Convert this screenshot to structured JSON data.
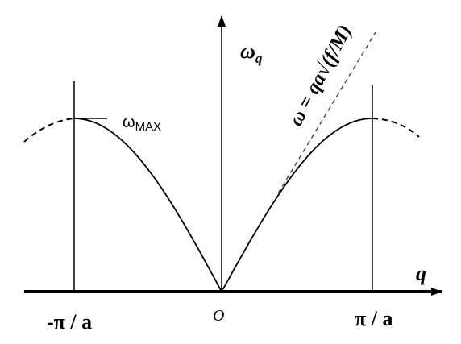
{
  "labels": {
    "omega_q": {
      "base": "ω",
      "sub": "q"
    },
    "omega_max": {
      "base": "ω",
      "sub": "MAX"
    },
    "q_axis": "q",
    "origin": "O",
    "left_boundary": "-π / a",
    "right_boundary": "π / a",
    "tangent_formula": "ω = qa√(f/M)"
  }
}
